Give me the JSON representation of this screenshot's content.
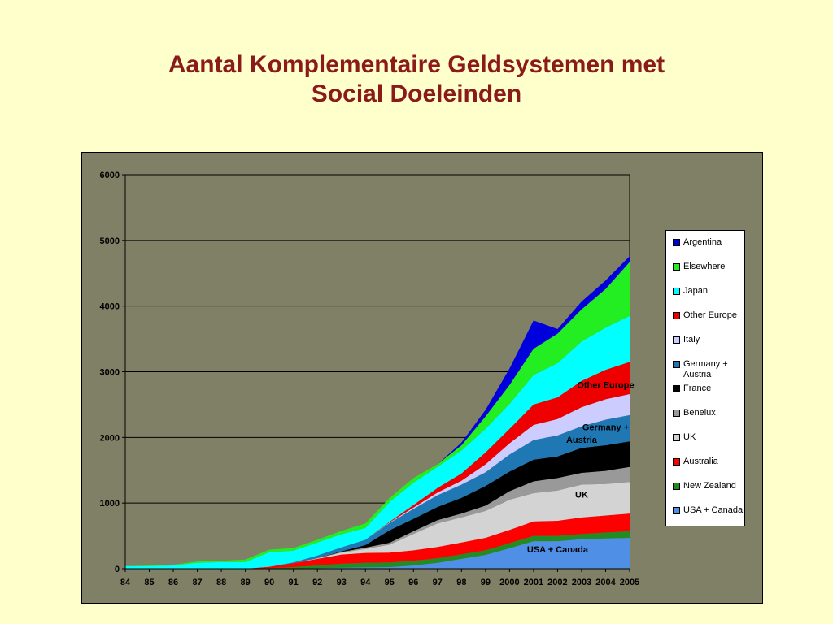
{
  "title_lines": [
    "Aantal Komplementaire Geldsystemen met",
    "Social Doeleinden"
  ],
  "chart_data": {
    "type": "area",
    "stacked": true,
    "x": [
      "84",
      "85",
      "86",
      "87",
      "88",
      "89",
      "90",
      "91",
      "92",
      "93",
      "94",
      "95",
      "96",
      "97",
      "98",
      "99",
      "2000",
      "2001",
      "2002",
      "2003",
      "2004",
      "2005"
    ],
    "ylim": [
      0,
      6000
    ],
    "yticks": [
      0,
      1000,
      2000,
      3000,
      4000,
      5000,
      6000
    ],
    "grid": true,
    "legend": "right",
    "series": [
      {
        "name": "USA + Canada",
        "color": "#4f8fe6",
        "values": [
          0,
          0,
          0,
          0,
          0,
          0,
          0,
          5,
          10,
          15,
          20,
          25,
          50,
          90,
          150,
          210,
          310,
          420,
          420,
          450,
          460,
          470
        ]
      },
      {
        "name": "New Zealand",
        "color": "#228b22",
        "values": [
          0,
          0,
          0,
          0,
          0,
          0,
          10,
          20,
          40,
          60,
          70,
          70,
          70,
          70,
          70,
          70,
          80,
          80,
          80,
          80,
          90,
          100
        ]
      },
      {
        "name": "Australia",
        "color": "#ff0000",
        "values": [
          0,
          0,
          0,
          0,
          0,
          0,
          20,
          60,
          100,
          140,
          150,
          150,
          160,
          170,
          180,
          190,
          200,
          220,
          230,
          250,
          260,
          270
        ]
      },
      {
        "name": "UK",
        "color": "#d3d3d3",
        "values": [
          0,
          0,
          0,
          0,
          0,
          0,
          0,
          0,
          10,
          30,
          60,
          120,
          250,
          360,
          380,
          410,
          460,
          430,
          460,
          500,
          480,
          480
        ]
      },
      {
        "name": "Benelux",
        "color": "#999999",
        "values": [
          0,
          0,
          0,
          0,
          0,
          0,
          0,
          0,
          0,
          10,
          20,
          30,
          40,
          50,
          60,
          80,
          130,
          180,
          190,
          180,
          200,
          230
        ]
      },
      {
        "name": "France",
        "color": "#000000",
        "values": [
          0,
          0,
          0,
          0,
          0,
          0,
          0,
          0,
          0,
          10,
          40,
          190,
          190,
          200,
          240,
          300,
          300,
          330,
          330,
          380,
          390,
          390
        ]
      },
      {
        "name": "Germany + Austria",
        "color": "#1f78b4",
        "values": [
          0,
          0,
          0,
          0,
          0,
          0,
          0,
          10,
          40,
          60,
          80,
          110,
          150,
          180,
          200,
          210,
          260,
          300,
          320,
          330,
          390,
          400
        ]
      },
      {
        "name": "Italy",
        "color": "#ccccff",
        "values": [
          0,
          0,
          0,
          0,
          0,
          0,
          0,
          0,
          0,
          0,
          0,
          10,
          20,
          40,
          60,
          120,
          170,
          230,
          250,
          290,
          310,
          320
        ]
      },
      {
        "name": "Other Europe",
        "color": "#ee0000",
        "values": [
          0,
          0,
          0,
          0,
          0,
          0,
          0,
          0,
          0,
          0,
          0,
          10,
          40,
          70,
          110,
          180,
          220,
          310,
          330,
          400,
          450,
          490
        ]
      },
      {
        "name": "Japan",
        "color": "#00ffff",
        "values": [
          40,
          40,
          50,
          90,
          100,
          100,
          220,
          180,
          200,
          200,
          180,
          300,
          340,
          320,
          350,
          360,
          380,
          450,
          520,
          600,
          640,
          700
        ]
      },
      {
        "name": "Elsewhere",
        "color": "#22ee22",
        "values": [
          0,
          10,
          10,
          20,
          20,
          40,
          40,
          40,
          40,
          50,
          70,
          60,
          70,
          40,
          80,
          190,
          290,
          400,
          450,
          490,
          590,
          820
        ]
      },
      {
        "name": "Argentina",
        "color": "#0000dd",
        "values": [
          0,
          0,
          0,
          0,
          0,
          0,
          0,
          0,
          0,
          0,
          0,
          0,
          0,
          0,
          40,
          100,
          250,
          430,
          70,
          120,
          130,
          90
        ]
      }
    ],
    "annotations": [
      {
        "text": "USA + Canada",
        "x": "2002",
        "y": 250
      },
      {
        "text": "UK",
        "x": "2003",
        "y": 1080
      },
      {
        "text": "Germany +",
        "x": "2004",
        "y": 2110
      },
      {
        "text": "Austria",
        "x": "2003",
        "y": 1920
      },
      {
        "text": "Other Europe",
        "x": "2004",
        "y": 2750
      }
    ]
  }
}
